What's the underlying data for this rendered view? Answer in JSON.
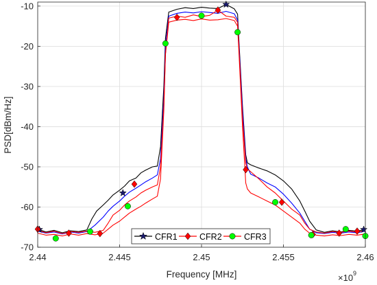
{
  "chart_data": {
    "type": "line",
    "title": "",
    "xlabel": "Frequency [MHz]",
    "ylabel": "PSD[dBm/Hz]",
    "x_exponent_label": "×10",
    "x_exponent_power": "9",
    "xlim": [
      2.44,
      2.46
    ],
    "ylim": [
      -70,
      -9
    ],
    "xticks": [
      2.44,
      2.445,
      2.45,
      2.455,
      2.46
    ],
    "xtick_labels": [
      "2.44",
      "2.445",
      "2.45",
      "2.455",
      "2.46"
    ],
    "yticks": [
      -70,
      -60,
      -50,
      -40,
      -30,
      -20,
      -10
    ],
    "ytick_labels": [
      "-70",
      "-60",
      "-50",
      "-40",
      "-30",
      "-20",
      "-10"
    ],
    "grid": true,
    "legend_position": "bottom-center",
    "legend_orientation": "horizontal",
    "series": [
      {
        "name": "CFR1",
        "color": "#000000",
        "marker": "star",
        "x": [
          2.44,
          2.4405,
          2.441,
          2.4415,
          2.442,
          2.4425,
          2.443,
          2.4433,
          2.4436,
          2.444,
          2.4443,
          2.4446,
          2.445,
          2.4453,
          2.4456,
          2.446,
          2.4463,
          2.4466,
          2.447,
          2.4473,
          2.4475,
          2.4477,
          2.4478,
          2.448,
          2.4485,
          2.449,
          2.4495,
          2.45,
          2.4505,
          2.451,
          2.4515,
          2.452,
          2.4522,
          2.4523,
          2.4525,
          2.4527,
          2.4528,
          2.453,
          2.4535,
          2.454,
          2.4545,
          2.455,
          2.4555,
          2.456,
          2.4563,
          2.4566,
          2.457,
          2.4575,
          2.458,
          2.4585,
          2.459,
          2.4595,
          2.46
        ],
        "y": [
          -65.5,
          -66.2,
          -65.8,
          -66.4,
          -65.9,
          -66.1,
          -65.7,
          -63.0,
          -61.0,
          -59.5,
          -58.3,
          -57.0,
          -55.8,
          -54.8,
          -53.5,
          -52.8,
          -51.5,
          -50.8,
          -50.0,
          -49.8,
          -45.0,
          -30.0,
          -18.0,
          -11.5,
          -10.8,
          -10.4,
          -10.6,
          -10.3,
          -10.5,
          -10.6,
          -9.6,
          -10.7,
          -12.0,
          -20.0,
          -35.0,
          -47.0,
          -49.0,
          -49.5,
          -50.3,
          -51.0,
          -52.0,
          -53.5,
          -55.5,
          -58.5,
          -61.0,
          -63.5,
          -65.7,
          -66.3,
          -65.9,
          -66.2,
          -65.8,
          -66.0,
          -65.6
        ],
        "markers_x": [
          2.4401,
          2.4452,
          2.4515,
          2.4599
        ],
        "markers_y": [
          -65.6,
          -56.5,
          -9.6,
          -65.6
        ]
      },
      {
        "name": "CFR2",
        "color": "#ff0000",
        "marker": "diamond",
        "x": [
          2.44,
          2.4405,
          2.441,
          2.4415,
          2.442,
          2.4425,
          2.443,
          2.4435,
          2.444,
          2.4443,
          2.4446,
          2.445,
          2.4453,
          2.4456,
          2.446,
          2.4463,
          2.4466,
          2.447,
          2.4473,
          2.4475,
          2.4477,
          2.4478,
          2.448,
          2.4485,
          2.449,
          2.4495,
          2.45,
          2.4505,
          2.451,
          2.4515,
          2.452,
          2.4522,
          2.4523,
          2.4525,
          2.4527,
          2.4528,
          2.453,
          2.4535,
          2.454,
          2.4545,
          2.455,
          2.4555,
          2.456,
          2.4563,
          2.4566,
          2.457,
          2.4575,
          2.458,
          2.4585,
          2.459,
          2.4595,
          2.46
        ],
        "y": [
          -65.8,
          -66.4,
          -66.0,
          -66.6,
          -66.1,
          -66.3,
          -66.0,
          -66.3,
          -65.8,
          -64.0,
          -62.0,
          -60.8,
          -59.5,
          -58.5,
          -57.5,
          -56.5,
          -55.8,
          -55.0,
          -54.5,
          -50.0,
          -35.0,
          -22.0,
          -13.0,
          -12.5,
          -12.8,
          -12.2,
          -12.6,
          -12.3,
          -11.0,
          -12.5,
          -12.8,
          -14.0,
          -22.0,
          -38.0,
          -49.0,
          -50.5,
          -51.2,
          -53.0,
          -55.0,
          -56.5,
          -58.5,
          -60.5,
          -62.0,
          -64.0,
          -65.5,
          -66.2,
          -66.5,
          -66.1,
          -66.3,
          -66.0,
          -66.2,
          -65.9
        ],
        "markers_x": [
          2.44,
          2.4419,
          2.4438,
          2.4459,
          2.4485,
          2.451,
          2.4527,
          2.4549,
          2.4568,
          2.4584,
          2.4595
        ],
        "markers_y": [
          -65.5,
          -66.5,
          -66.6,
          -54.3,
          -12.8,
          -11.0,
          -50.7,
          -58.8,
          -66.8,
          -66.5,
          -66.0
        ]
      },
      {
        "name": "CFR3",
        "color": "#0000ff",
        "marker": "none",
        "x": [
          2.44,
          2.4405,
          2.441,
          2.4415,
          2.442,
          2.4425,
          2.443,
          2.4435,
          2.444,
          2.4443,
          2.4446,
          2.445,
          2.4453,
          2.4456,
          2.446,
          2.4463,
          2.4466,
          2.447,
          2.4473,
          2.4475,
          2.4477,
          2.4478,
          2.448,
          2.4485,
          2.449,
          2.4495,
          2.45,
          2.4505,
          2.451,
          2.4515,
          2.452,
          2.4522,
          2.4523,
          2.4525,
          2.4527,
          2.4528,
          2.453,
          2.4535,
          2.454,
          2.4545,
          2.455,
          2.4555,
          2.456,
          2.4563,
          2.4566,
          2.457,
          2.4575,
          2.458,
          2.4585,
          2.459,
          2.4595,
          2.46
        ],
        "y": [
          -66.0,
          -66.5,
          -66.2,
          -66.7,
          -66.2,
          -66.5,
          -66.1,
          -64.5,
          -62.5,
          -61.0,
          -59.8,
          -58.5,
          -57.3,
          -56.3,
          -55.3,
          -54.5,
          -53.7,
          -52.8,
          -52.0,
          -48.0,
          -33.0,
          -20.0,
          -12.5,
          -11.8,
          -11.5,
          -11.7,
          -11.4,
          -11.6,
          -11.8,
          -11.3,
          -11.9,
          -13.5,
          -21.0,
          -36.0,
          -48.0,
          -50.0,
          -51.8,
          -52.8,
          -54.0,
          -55.0,
          -56.8,
          -59.0,
          -61.5,
          -63.5,
          -65.5,
          -66.4,
          -66.6,
          -66.3,
          -66.5,
          -66.2,
          -66.4,
          -66.0
        ],
        "markers_x": [],
        "markers_y": []
      },
      {
        "name": "CFR3",
        "color": "#ff0000",
        "marker": "circle",
        "marker_color": "#00ff00",
        "x": [
          2.44,
          2.4405,
          2.441,
          2.4415,
          2.442,
          2.4425,
          2.443,
          2.4435,
          2.444,
          2.4443,
          2.4446,
          2.445,
          2.4453,
          2.4456,
          2.446,
          2.4463,
          2.4466,
          2.447,
          2.4473,
          2.4475,
          2.4477,
          2.4478,
          2.448,
          2.4485,
          2.449,
          2.4495,
          2.45,
          2.4505,
          2.451,
          2.4515,
          2.452,
          2.4522,
          2.4523,
          2.4525,
          2.4527,
          2.4528,
          2.453,
          2.4535,
          2.454,
          2.4545,
          2.455,
          2.4555,
          2.456,
          2.4563,
          2.4566,
          2.457,
          2.4575,
          2.458,
          2.4585,
          2.459,
          2.4595,
          2.46
        ],
        "y": [
          -66.5,
          -67.0,
          -66.8,
          -67.2,
          -66.7,
          -67.0,
          -66.6,
          -66.9,
          -66.5,
          -65.5,
          -64.5,
          -63.5,
          -62.5,
          -61.5,
          -60.5,
          -59.8,
          -59.0,
          -58.0,
          -57.3,
          -53.0,
          -36.0,
          -22.0,
          -14.0,
          -13.5,
          -13.3,
          -13.6,
          -13.2,
          -13.5,
          -13.4,
          -13.1,
          -13.6,
          -15.0,
          -23.0,
          -40.0,
          -54.0,
          -55.5,
          -56.5,
          -57.5,
          -58.5,
          -59.5,
          -61.0,
          -62.5,
          -64.0,
          -65.5,
          -66.5,
          -67.0,
          -67.2,
          -66.9,
          -67.1,
          -66.8,
          -67.0,
          -66.7
        ],
        "markers_x": [
          2.4411,
          2.4432,
          2.4455,
          2.4478,
          2.45,
          2.4522,
          2.4545,
          2.4567,
          2.4588,
          2.46
        ],
        "markers_y": [
          -67.8,
          -66.1,
          -59.8,
          -19.3,
          -12.4,
          -16.5,
          -58.8,
          -67.0,
          -65.5,
          -67.2
        ]
      }
    ]
  },
  "legend": {
    "entries": [
      "CFR1",
      "CFR2",
      "CFR3"
    ]
  }
}
